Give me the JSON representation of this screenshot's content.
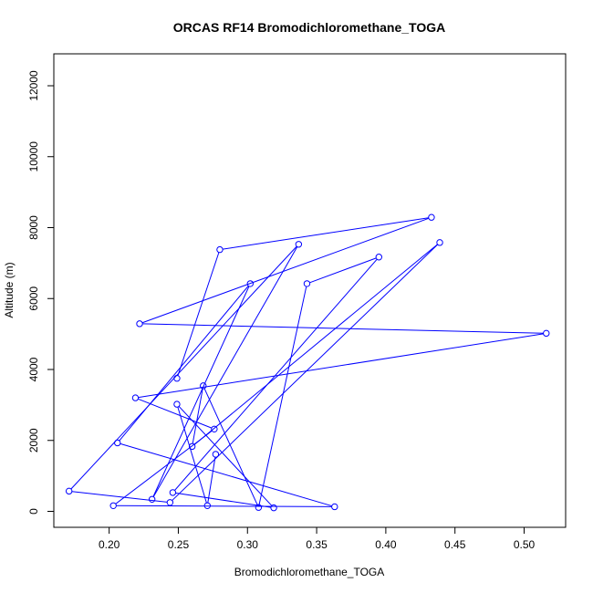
{
  "chart_data": {
    "type": "line",
    "title": "ORCAS RF14 Bromodichloromethane_TOGA",
    "xlabel": "Bromodichloromethane_TOGA",
    "ylabel": "Altitude (m)",
    "xlim": [
      0.16,
      0.53
    ],
    "ylim": [
      -450,
      12900
    ],
    "x_ticks": [
      0.2,
      0.25,
      0.3,
      0.35,
      0.4,
      0.45,
      0.5
    ],
    "x_tick_labels": [
      "0.20",
      "0.25",
      "0.30",
      "0.35",
      "0.40",
      "0.45",
      "0.50"
    ],
    "y_ticks": [
      0,
      2000,
      4000,
      6000,
      8000,
      10000,
      12000
    ],
    "y_tick_labels": [
      "0",
      "2000",
      "4000",
      "6000",
      "8000",
      "10000",
      "12000"
    ],
    "grid": false,
    "series_color": "#0000ff",
    "marker": "open-circle",
    "series": [
      {
        "x": [
          0.249,
          0.28,
          0.433,
          0.222,
          0.516,
          0.219,
          0.276,
          0.203,
          0.363,
          0.206,
          0.302,
          0.231,
          0.337,
          0.171,
          0.244,
          0.439,
          0.26,
          0.268,
          0.308,
          0.343,
          0.395,
          0.246,
          0.319,
          0.249,
          0.271,
          0.277
        ],
        "y": [
          3750,
          7380,
          8290,
          5290,
          5020,
          3200,
          2320,
          160,
          130,
          1930,
          6420,
          340,
          7530,
          570,
          250,
          7580,
          1830,
          3540,
          110,
          6420,
          7170,
          530,
          100,
          3020,
          160,
          1610
        ]
      }
    ]
  }
}
